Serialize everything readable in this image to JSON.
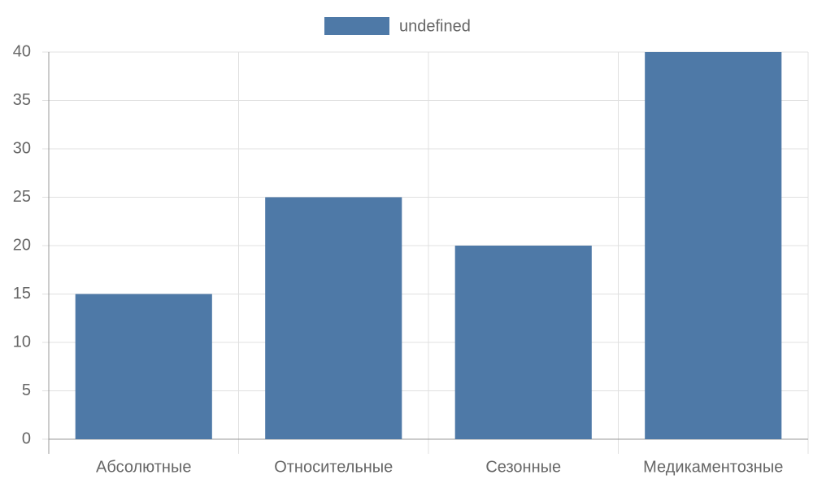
{
  "chart_data": {
    "type": "bar",
    "categories": [
      "Абсолютные",
      "Относительные",
      "Сезонные",
      "Медикаментозные"
    ],
    "series": [
      {
        "name": "undefined",
        "color": "#4e79a7",
        "values": [
          15,
          25,
          20,
          40
        ]
      }
    ],
    "ylim": [
      0,
      40
    ],
    "yticks": [
      0,
      5,
      10,
      15,
      20,
      25,
      30,
      35,
      40
    ],
    "grid": true,
    "legend": "top"
  }
}
